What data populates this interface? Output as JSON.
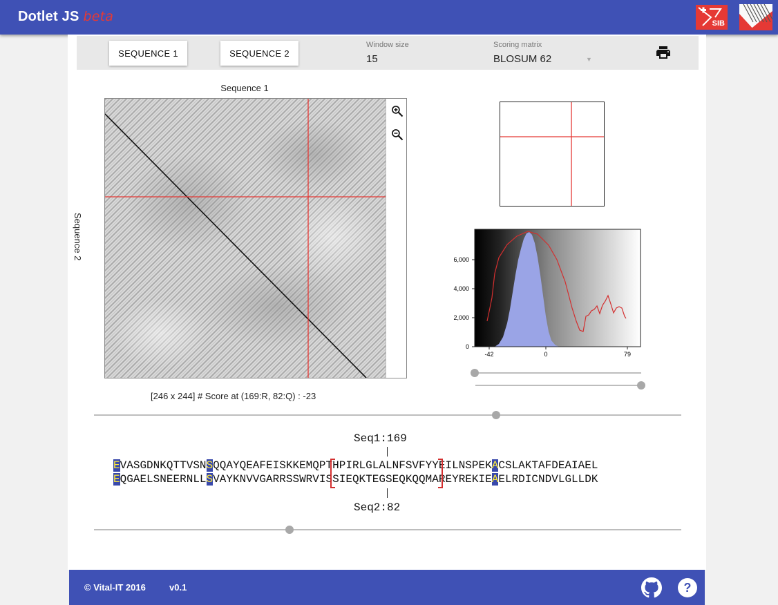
{
  "app": {
    "title": "Dotlet JS",
    "badge": "beta"
  },
  "logos": {
    "sib_text": "SIB"
  },
  "toolbar": {
    "seq1_button": "SEQUENCE 1",
    "seq2_button": "SEQUENCE 2",
    "window_size_label": "Window size",
    "window_size_value": "15",
    "scoring_matrix_label": "Scoring matrix",
    "scoring_matrix_value": "BLOSUM 62",
    "print_icon": "printer-icon"
  },
  "plot": {
    "x_label": "Sequence 1",
    "y_label": "Sequence 2",
    "status": "[246 x 244] # Score at (169:R, 82:Q) : -23",
    "zoom_in_icon": "zoom-in-icon",
    "zoom_out_icon": "zoom-out-icon"
  },
  "histogram": {
    "y_ticks": [
      "6,000",
      "4,000",
      "2,000",
      "0"
    ],
    "x_ticks": [
      "-42",
      "0",
      "79"
    ]
  },
  "alignment": {
    "seq1_label": "Seq1:169",
    "seq2_label": "Seq2:82",
    "seq1": "EVASGDNKQTTVSNSQQAYQEAFEISKKEMQPTHPIRLGLALNFSVFYYEILNSPEKACSLAKTAFDEAIAEL",
    "seq2": "EQGAELSNEERNLLSVAYKNVVGARRSSWRVISSIEQKTEGSEQKQQMAREYREKIEAELRDICNDVLGLLDK",
    "highlight_positions": [
      0,
      14,
      57
    ]
  },
  "footer": {
    "copyright": "© Vital-IT 2016",
    "version": "v0.1",
    "github_icon": "github-icon",
    "help_icon": "help-icon"
  },
  "colors": {
    "primary": "#3f51b5",
    "accent": "#e53935",
    "highlight_bg": "#3949ab",
    "highlight_fg": "#ffeb3b"
  }
}
